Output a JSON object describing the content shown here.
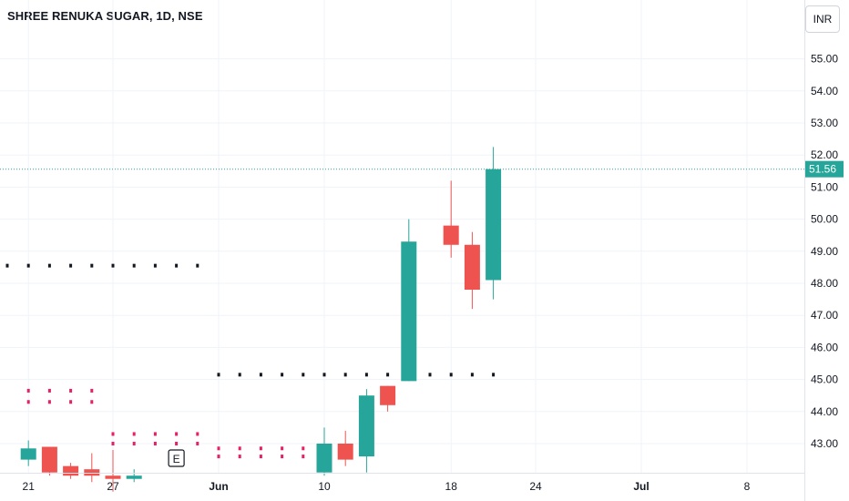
{
  "header": {
    "title": "SHREE RENUKA SUGAR, 1D, NSE",
    "currency": "INR"
  },
  "colors": {
    "up": "#26a69a",
    "down": "#ef5350",
    "pivot_black": "#131722",
    "pivot_red": "#e91e63",
    "pivot_green": "#4caf50",
    "grid": "#f0f3fa",
    "last_price_line": "#26a69a"
  },
  "chart_data": {
    "type": "candlestick",
    "title": "SHREE RENUKA SUGAR, 1D, NSE",
    "xlabel": "",
    "ylabel": "",
    "ylim": [
      42.1,
      56.0
    ],
    "y_ticks": [
      "55.00",
      "54.00",
      "53.00",
      "52.00",
      "51.00",
      "50.00",
      "49.00",
      "48.00",
      "47.00",
      "46.00",
      "45.00",
      "44.00",
      "43.00"
    ],
    "x_ticks": [
      {
        "label": "21",
        "bold": false,
        "date": "2024-05-21"
      },
      {
        "label": "27",
        "bold": false,
        "date": "2024-05-27"
      },
      {
        "label": "Jun",
        "bold": true,
        "date": "2024-06-03"
      },
      {
        "label": "10",
        "bold": false,
        "date": "2024-06-10"
      },
      {
        "label": "18",
        "bold": false,
        "date": "2024-06-18"
      },
      {
        "label": "24",
        "bold": false,
        "date": "2024-06-24"
      },
      {
        "label": "Jul",
        "bold": true,
        "date": "2024-07-01"
      },
      {
        "label": "8",
        "bold": false,
        "date": "2024-07-08"
      }
    ],
    "last_price": "51.56",
    "candles": [
      {
        "date": "2024-05-21",
        "open": 42.5,
        "high": 43.1,
        "low": 42.3,
        "close": 42.85
      },
      {
        "date": "2024-05-22",
        "open": 42.9,
        "high": 42.9,
        "low": 42.0,
        "close": 42.1
      },
      {
        "date": "2024-05-23",
        "open": 42.3,
        "high": 42.4,
        "low": 41.9,
        "close": 42.0
      },
      {
        "date": "2024-05-24",
        "open": 42.2,
        "high": 42.7,
        "low": 41.8,
        "close": 42.0
      },
      {
        "date": "2024-05-27",
        "open": 42.0,
        "high": 42.8,
        "low": 41.5,
        "close": 41.9
      },
      {
        "date": "2024-05-28",
        "open": 41.9,
        "high": 42.2,
        "low": 41.8,
        "close": 42.0
      },
      {
        "date": "2024-06-10",
        "open": 42.1,
        "high": 43.5,
        "low": 42.0,
        "close": 43.0
      },
      {
        "date": "2024-06-11",
        "open": 43.0,
        "high": 43.4,
        "low": 42.3,
        "close": 42.5
      },
      {
        "date": "2024-06-12",
        "open": 42.6,
        "high": 44.7,
        "low": 42.1,
        "close": 44.5
      },
      {
        "date": "2024-06-13",
        "open": 44.8,
        "high": 44.8,
        "low": 44.0,
        "close": 44.2
      },
      {
        "date": "2024-06-14",
        "open": 44.95,
        "high": 50.0,
        "low": 44.95,
        "close": 49.3
      },
      {
        "date": "2024-06-18",
        "open": 49.8,
        "high": 51.2,
        "low": 48.8,
        "close": 49.2
      },
      {
        "date": "2024-06-19",
        "open": 49.2,
        "high": 49.6,
        "low": 47.2,
        "close": 47.8
      },
      {
        "date": "2024-06-20",
        "open": 48.1,
        "high": 52.25,
        "low": 47.5,
        "close": 51.56
      }
    ],
    "pivot_levels": [
      {
        "color": "black",
        "value": 48.55,
        "from": "2024-05-20",
        "to": "2024-05-31"
      },
      {
        "color": "black",
        "value": 45.15,
        "from": "2024-06-03",
        "to": "2024-06-20"
      },
      {
        "color": "red",
        "value": 44.65,
        "from": "2024-05-21",
        "to": "2024-05-24"
      },
      {
        "color": "red",
        "value": 44.3,
        "from": "2024-05-21",
        "to": "2024-05-24"
      },
      {
        "color": "red",
        "value": 43.3,
        "from": "2024-05-27",
        "to": "2024-05-31"
      },
      {
        "color": "red",
        "value": 43.0,
        "from": "2024-05-27",
        "to": "2024-05-31"
      },
      {
        "color": "red",
        "value": 42.85,
        "from": "2024-06-03",
        "to": "2024-06-07"
      },
      {
        "color": "red",
        "value": 42.6,
        "from": "2024-06-03",
        "to": "2024-06-07"
      }
    ],
    "event_marker": {
      "label": "E",
      "date": "2024-05-30"
    }
  }
}
